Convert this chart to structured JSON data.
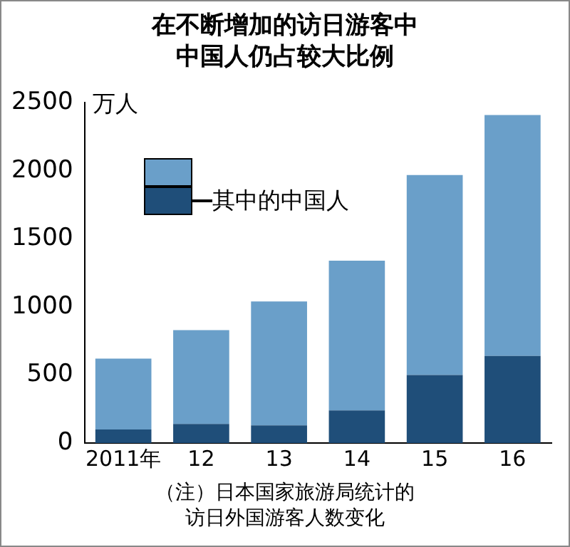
{
  "chart_data": {
    "type": "bar",
    "title": "在不断增加的访日游客中中国人仍占较大比例",
    "ylabel": "万人",
    "categories": [
      "2011年",
      "12",
      "13",
      "14",
      "15",
      "16"
    ],
    "stacked": true,
    "series": [
      {
        "name": "其中的中国人",
        "color": "#1f4e79",
        "values": [
          100,
          140,
          130,
          240,
          500,
          640
        ]
      },
      {
        "color": "#6a9fc9",
        "values": [
          520,
          690,
          910,
          1100,
          1470,
          1770
        ]
      }
    ],
    "ylim": [
      0,
      2500
    ],
    "yticks": [
      0,
      500,
      1000,
      1500,
      2000,
      2500
    ],
    "grid": false,
    "legend": "top left",
    "annotations": [
      "（注）日本国家旅游局统计的",
      "访日外国游客人数变化"
    ]
  }
}
